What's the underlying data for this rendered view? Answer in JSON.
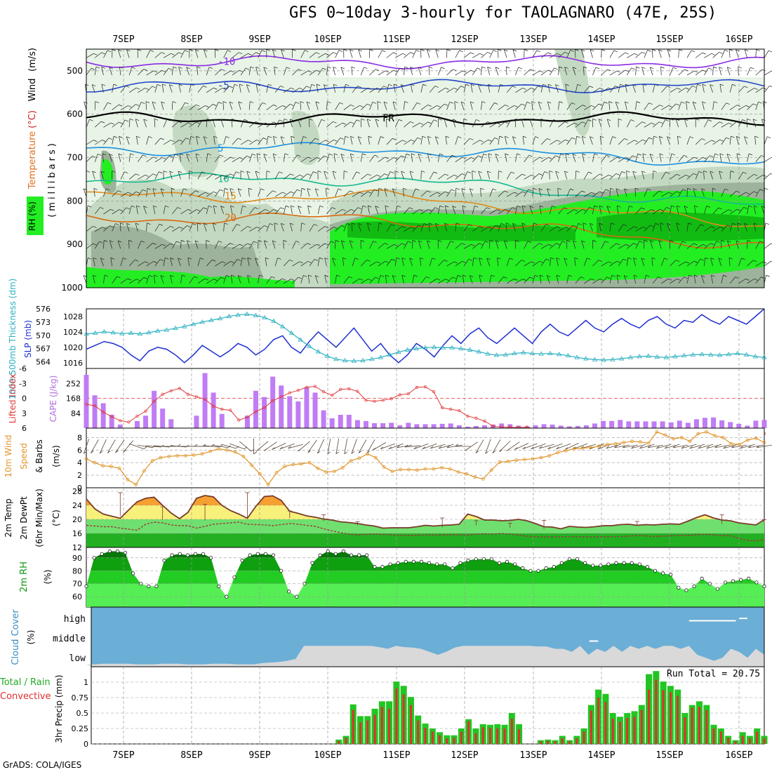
{
  "title": "GFS 0~10day 3-hourly for TAOLAGNARO (47E, 25S)",
  "credit": "GrADS: COLA/IGES",
  "colors": {
    "rh_light": "#e8f4e6",
    "rh_mid": "#c4d9c2",
    "rh_dark": "#9db39b",
    "rh_green": "#22ee22",
    "rh_darkgreen": "#11bb11",
    "cloud_blue": "#6baed6",
    "cloud_grey": "#d9d9d9",
    "slp": "#1e2fd2",
    "thickness": "#2ab0c0",
    "cape": "#c07cf5",
    "lifted": "#e23a3a",
    "wind10": "#e0952a",
    "precip_total": "#22c522",
    "precip_conv": "#e03030"
  },
  "chart_data": [
    {
      "type": "contour",
      "name": "upper_air",
      "ylabel_parts": [
        "Temperature",
        "(°C)",
        "Wind",
        "(m/s)"
      ],
      "ylabel_inner": "(millibars)",
      "rh_label": "RH (%)",
      "x_top_labels": [
        "7SEP",
        "8SEP",
        "9SEP",
        "10SEP",
        "11SEP",
        "12SEP",
        "13SEP",
        "14SEP",
        "15SEP",
        "16SEP"
      ],
      "yticks": [
        500,
        600,
        700,
        800,
        900,
        1000
      ],
      "ylim": [
        1000,
        450
      ],
      "isotherms": [
        {
          "label": "-10",
          "color": "#8a2be2",
          "level": 480
        },
        {
          "label": "-5",
          "color": "#2244cc",
          "level": 535
        },
        {
          "label": "FR",
          "color": "#000000",
          "level": 610
        },
        {
          "label": "5",
          "color": "#1e90e0",
          "level": 680
        },
        {
          "label": "10",
          "color": "#16b890",
          "level": 750
        },
        {
          "label": "15",
          "color": "#e08a1a",
          "level": 790
        },
        {
          "label": "20",
          "color": "#d86a10",
          "level": 840
        }
      ]
    },
    {
      "type": "line",
      "name": "slp_thickness",
      "ylabel_left": "1000-500mb Thickness (dm)",
      "ylabel_right": "SLP (mb)",
      "thickness_ticks": [
        564,
        567,
        570,
        573,
        576
      ],
      "slp_ticks": [
        1016,
        1020,
        1024,
        1028
      ],
      "slp": [
        1019.5,
        1020.5,
        1021.5,
        1021,
        1020,
        1018,
        1016.5,
        1019,
        1020,
        1019.5,
        1018,
        1016,
        1018,
        1020.5,
        1019,
        1017.5,
        1019,
        1021,
        1020,
        1018,
        1019.5,
        1022,
        1023,
        1020,
        1018.5,
        1021.5,
        1024,
        1022,
        1020,
        1022.5,
        1025,
        1022,
        1019,
        1021,
        1018,
        1016,
        1018,
        1021,
        1019.5,
        1017.5,
        1020.5,
        1023,
        1021,
        1023.5,
        1025,
        1022.5,
        1021,
        1023,
        1025,
        1023,
        1021,
        1024,
        1026,
        1024,
        1023,
        1025,
        1027,
        1025,
        1024,
        1026,
        1027.5,
        1026,
        1025,
        1027,
        1028,
        1026,
        1025,
        1027,
        1026.5,
        1028.5,
        1027,
        1026,
        1028,
        1027,
        1026,
        1028,
        1030
      ],
      "thickness": [
        570.3,
        570.5,
        570.8,
        570.6,
        570.4,
        570.5,
        570.3,
        570.6,
        571,
        571.2,
        571.6,
        572,
        572.5,
        573,
        573.4,
        573.8,
        574.3,
        574.6,
        574.8,
        574.5,
        574,
        573.2,
        572,
        570.5,
        569,
        567.5,
        566.3,
        565.3,
        564.6,
        564.3,
        564.2,
        564.3,
        564.6,
        565,
        565.6,
        566.2,
        566.7,
        567,
        567.2,
        567.3,
        567.2,
        567.2,
        567,
        566.7,
        566.3,
        565.8,
        565.5,
        565.6,
        565.9,
        566.1,
        565.9,
        565.8,
        565.9,
        565.7,
        565.4,
        565,
        564.7,
        564.5,
        564.4,
        564.5,
        564.7,
        565,
        565.2,
        565.3,
        565.1,
        565,
        565.2,
        565.4,
        565.6,
        565.7,
        565.6,
        565.5,
        565.7,
        565.9,
        565.6,
        565.2,
        565
      ]
    },
    {
      "type": "bar",
      "name": "cape_li",
      "ylabel_left": "Lifted Index",
      "ylabel_right": "CAPE (J/kg)",
      "li_ticks": [
        "-6",
        "-3",
        "0",
        "3",
        "6"
      ],
      "cape_ticks": [
        84,
        168,
        252
      ],
      "cape": [
        300,
        185,
        140,
        75,
        20,
        0,
        40,
        70,
        210,
        110,
        50,
        0,
        0,
        70,
        310,
        200,
        80,
        0,
        0,
        70,
        210,
        175,
        290,
        240,
        180,
        150,
        230,
        200,
        100,
        55,
        75,
        75,
        45,
        40,
        28,
        28,
        30,
        16,
        30,
        22,
        22,
        22,
        24,
        26,
        16,
        8,
        12,
        16,
        20,
        26,
        22,
        14,
        10,
        16,
        22,
        20,
        14,
        10,
        12,
        16,
        26,
        40,
        40,
        46,
        38,
        38,
        38,
        38,
        38,
        32,
        42,
        30,
        50,
        58,
        60,
        44,
        34,
        24,
        14,
        42,
        46
      ],
      "li": [
        1.2,
        1.5,
        2.8,
        3.7,
        4.5,
        4.8,
        3.6,
        2.6,
        0.6,
        -0.8,
        -1.5,
        -2,
        -0.8,
        -0.3,
        0.2,
        1.6,
        2.2,
        2.4,
        4.4,
        3.8,
        2.7,
        1.9,
        0.5,
        -0.3,
        -1.1,
        -1.6,
        -2.2,
        -2.4,
        -1.3,
        -0.6,
        -1.8,
        -1.9,
        -1.4,
        0.4,
        0.6,
        0.4,
        0.1,
        -0.7,
        -0.9,
        -2.2,
        -2.3,
        -1.3,
        1.9,
        2.2,
        2.5,
        3.6,
        4,
        4.6,
        5.6,
        5.8,
        5.8,
        5.9,
        5.8,
        6.2,
        6.2,
        6.3,
        6.5,
        6.2,
        6.6,
        6.5,
        6.6,
        6.6,
        6.8,
        6.9,
        7.1,
        6.9,
        7.2,
        7.1,
        7,
        6.9,
        7.2,
        7.1,
        7.2,
        7.3,
        7.4,
        7.2,
        7.3,
        7.3,
        7.4,
        7.2,
        7.1
      ]
    },
    {
      "type": "line",
      "name": "wind10m",
      "ylabel": "10m Wind Speed & Barbs (m/s)",
      "yticks": [
        0,
        2,
        4,
        6,
        8
      ],
      "speed": [
        4.6,
        4,
        3.5,
        3.4,
        3.1,
        1.3,
        0.5,
        2.7,
        4.3,
        4.8,
        5,
        5.1,
        5.1,
        5.2,
        5.4,
        5.8,
        6.2,
        6,
        5.7,
        5,
        3.6,
        2.2,
        0.5,
        2.4,
        3.4,
        3.7,
        3.8,
        4,
        3.1,
        2.5,
        2.6,
        3.2,
        4.3,
        4.7,
        5.4,
        4.8,
        3.3,
        2.6,
        2.9,
        2.9,
        2.8,
        3,
        3,
        3.2,
        3,
        2.5,
        2.2,
        1.7,
        1.4,
        2.8,
        4.1,
        4.2,
        4.4,
        4.5,
        4.6,
        4.8,
        5.1,
        5.6,
        5.9,
        6.2,
        6.3,
        6.4,
        6.6,
        6.9,
        7,
        7.2,
        7.4,
        7.3,
        7.1,
        8.9,
        8.4,
        7.8,
        8,
        7.4,
        8.6,
        8.9,
        8.3,
        8,
        7,
        6.9,
        7.6,
        7.9,
        7.2
      ],
      "barb_dir": [
        200,
        210,
        205,
        210,
        215,
        220,
        110,
        100,
        95,
        95,
        90,
        95,
        90,
        90,
        90,
        95,
        100,
        105,
        110,
        130,
        180,
        230,
        235,
        245,
        250,
        255,
        230,
        215,
        205,
        190,
        190,
        190,
        200,
        210,
        210,
        240,
        250,
        250,
        260,
        265,
        250,
        250,
        255,
        255,
        260,
        270,
        235,
        210,
        200,
        210,
        225,
        235,
        245,
        250,
        250,
        255,
        250,
        250,
        245,
        250,
        255,
        250,
        250,
        255,
        260,
        260,
        255,
        255,
        260,
        255,
        255,
        260,
        255,
        255,
        255,
        255,
        260,
        255,
        260,
        255,
        260,
        260
      ]
    },
    {
      "type": "area",
      "name": "temperature2m",
      "ylabel": "2m Temp 2m DewPt (6hr Min/Max) (°C)",
      "yticks": [
        12,
        16,
        20,
        24,
        28
      ],
      "temp": [
        25.8,
        23,
        21.5,
        20.9,
        20.3,
        22.7,
        25,
        26,
        26.3,
        24,
        21.8,
        20.2,
        22,
        26,
        26.8,
        26.4,
        24,
        22.5,
        21.5,
        20.3,
        23.7,
        26.5,
        26.7,
        25.4,
        22.3,
        21.7,
        21,
        20.6,
        20.1,
        19.8,
        19.3,
        19.1,
        18.8,
        18.4,
        18.1,
        17.5,
        17.6,
        17.6,
        17.6,
        17.9,
        18.3,
        18.1,
        18.3,
        18.4,
        18.6,
        21.5,
        20.8,
        19.8,
        19.8,
        19.6,
        19.7,
        20,
        19.6,
        18.8,
        17.9,
        17.8,
        17.3,
        18,
        17.8,
        17.7,
        17.9,
        18.2,
        18.2,
        18.5,
        18.6,
        18.3,
        18.5,
        18.4,
        18.6,
        18.7,
        18.6,
        19.5,
        20.5,
        21.3,
        20.4,
        19.8,
        19.6,
        19,
        18.7,
        18.4,
        19.9
      ],
      "dew": [
        18.3,
        18.1,
        17.9,
        17.9,
        17.5,
        17.2,
        16.9,
        18.6,
        19.2,
        19,
        18.4,
        18.2,
        18.2,
        17.5,
        18,
        18.6,
        18.8,
        19,
        19.2,
        18.6,
        18.5,
        18.4,
        18.2,
        18.5,
        18.8,
        18.6,
        18.3,
        18,
        17.3,
        16.7,
        16.2,
        15.8,
        15.5,
        15.7,
        15.8,
        15.7,
        15.6,
        15.4,
        15.4,
        15.4,
        15.6,
        15.5,
        15.6,
        15.6,
        15.6,
        15.5,
        15.8,
        15.9,
        15.8,
        16,
        15.8,
        15.5,
        15.2,
        15,
        15,
        15,
        15,
        15.1,
        15,
        15,
        15,
        15,
        15,
        15.1,
        15.2,
        15.4,
        15.3,
        15.1,
        15.2,
        15.3,
        15.4,
        15.4,
        15.6,
        15.7,
        15.6,
        15.4,
        15.3,
        14.6,
        14,
        13.9,
        14.3
      ],
      "max6h": [
        null,
        null,
        null,
        null,
        27.6,
        null,
        null,
        null,
        null,
        23.6,
        null,
        null,
        null,
        null,
        24.3,
        null,
        null,
        null,
        null,
        27.6,
        null,
        null,
        null,
        null,
        22.4,
        null,
        null,
        null,
        21.3,
        null,
        null,
        null,
        19.3,
        null,
        null,
        null,
        null,
        null,
        null,
        null,
        null,
        null,
        20.4,
        null,
        null,
        null,
        19.6,
        null,
        null,
        null,
        18.9,
        null,
        null,
        null,
        19.7,
        null,
        null,
        null,
        null,
        null,
        null,
        null,
        null,
        null,
        null,
        19.4,
        null,
        null,
        null,
        null,
        null,
        null,
        null,
        null,
        null,
        21.3,
        null,
        null,
        null,
        null,
        19.9
      ],
      "min6h": [
        null,
        null,
        null,
        null,
        20.9,
        null,
        null,
        null,
        null,
        19.9,
        null,
        null,
        null,
        null,
        19.7,
        null,
        null,
        null,
        null,
        20.2,
        null,
        null,
        null,
        null,
        20.4,
        null,
        null,
        null,
        19.5,
        null,
        null,
        null,
        18.3,
        null,
        null,
        null,
        null,
        null,
        null,
        null,
        null,
        null,
        17.7,
        null,
        null,
        null,
        18.3,
        null,
        null,
        null,
        17.6,
        null,
        null,
        null,
        17.3,
        null,
        null,
        null,
        null,
        null,
        null,
        null,
        null,
        null,
        null,
        18.2,
        null,
        null,
        null,
        null,
        null,
        null,
        null,
        null,
        null,
        18.7,
        null,
        null,
        null,
        null,
        18.4
      ]
    },
    {
      "type": "area",
      "name": "rh2m",
      "ylabel": "2m RH (%)",
      "yticks": [
        60,
        70,
        80,
        90
      ],
      "rh": [
        68,
        90,
        93,
        95,
        95,
        94,
        78,
        70,
        68,
        68,
        88,
        92,
        93,
        92,
        93,
        93,
        90,
        68,
        60,
        75,
        88,
        92,
        93,
        93,
        92,
        80,
        64,
        60,
        70,
        86,
        92,
        95,
        93,
        95,
        92,
        92,
        92,
        83,
        83,
        85,
        86,
        87,
        87,
        87,
        86,
        85,
        85,
        82,
        86,
        88,
        89,
        89,
        89,
        86,
        87,
        85,
        82,
        80,
        80,
        82,
        83,
        86,
        89,
        89,
        86,
        84,
        84,
        85,
        86,
        86,
        86,
        85,
        83,
        80,
        78,
        77,
        67,
        65,
        68,
        74,
        70,
        66,
        71,
        72,
        73,
        74,
        71,
        68
      ],
      "ylim": [
        52,
        98
      ]
    },
    {
      "type": "area",
      "name": "cloud",
      "ylabel": "Cloud Cover (%)",
      "levels": [
        "high",
        "middle",
        "low"
      ],
      "low": [
        4,
        4,
        5,
        5,
        5,
        5,
        4,
        4,
        4,
        5,
        5,
        5,
        4,
        4,
        4,
        5,
        5,
        5,
        4,
        4,
        4,
        6,
        7,
        8,
        10,
        13,
        35,
        35,
        35,
        35,
        35,
        35,
        35,
        35,
        35,
        33,
        30,
        35,
        33,
        32,
        30,
        25,
        20,
        25,
        32,
        35,
        35,
        35,
        35,
        35,
        35,
        35,
        35,
        35,
        34,
        34,
        30,
        30,
        25,
        35,
        20,
        30,
        25,
        35,
        25,
        35,
        30,
        35,
        30,
        35,
        35,
        30,
        35,
        20,
        15,
        10,
        15,
        30,
        25,
        15,
        30,
        20
      ],
      "high_lines": [
        {
          "start": 0.889,
          "end": 0.958,
          "value": 0.77
        },
        {
          "start": 0.963,
          "end": 0.975,
          "value": 0.81
        }
      ],
      "mid_line": [
        {
          "start": 0.742,
          "end": 0.755,
          "value": 0.43
        }
      ]
    },
    {
      "type": "bar",
      "name": "precip",
      "ylabel": "3hr Precip (mm)",
      "ylabel_extra": [
        "Total / Rain",
        "Convective"
      ],
      "yticks": [
        0,
        0.25,
        0.5,
        0.75,
        1
      ],
      "ytick_labels": [
        "0",
        "0.25",
        "0.5",
        "0.75",
        "1"
      ],
      "annotation": "Run Total = 20.75",
      "total": [
        0,
        0,
        0,
        0,
        0,
        0,
        0,
        0,
        0,
        0,
        0,
        0,
        0,
        0,
        0,
        0,
        0,
        0,
        0,
        0,
        0,
        0,
        0,
        0,
        0,
        0,
        0,
        0,
        0,
        0,
        0,
        0,
        0,
        0,
        0,
        0.07,
        0.13,
        0.64,
        0.45,
        0.45,
        0.57,
        0.69,
        0.69,
        1.01,
        0.94,
        0.76,
        0.46,
        0.33,
        0.25,
        0.19,
        0.14,
        0.14,
        0.25,
        0.4,
        0.25,
        0.32,
        0.31,
        0.32,
        0.31,
        0.5,
        0.32,
        0,
        0,
        0.06,
        0.07,
        0.06,
        0.13,
        0.06,
        0.13,
        0.25,
        0.63,
        0.88,
        0.81,
        0.5,
        0.44,
        0.5,
        0.53,
        0.63,
        1.13,
        1.18,
        1.01,
        0.94,
        0.88,
        0.5,
        0.63,
        0.69,
        0.63,
        0.31,
        0.25,
        0.13,
        0.06,
        0.19,
        0.13,
        0.25,
        0.13
      ],
      "conv": [
        0,
        0,
        0,
        0,
        0,
        0,
        0,
        0,
        0,
        0,
        0,
        0,
        0,
        0,
        0,
        0,
        0,
        0,
        0,
        0,
        0,
        0,
        0,
        0,
        0,
        0,
        0,
        0,
        0,
        0,
        0,
        0,
        0,
        0,
        0,
        0.05,
        0.1,
        0.55,
        0.35,
        0.38,
        0.47,
        0.6,
        0.57,
        0.9,
        0.8,
        0.63,
        0.38,
        0.26,
        0.2,
        0.14,
        0.09,
        0.1,
        0.2,
        0.37,
        0.17,
        0.27,
        0.26,
        0.25,
        0.25,
        0.41,
        0.24,
        0,
        0,
        0.04,
        0.05,
        0.04,
        0.09,
        0.04,
        0.09,
        0.2,
        0.54,
        0.75,
        0.68,
        0.41,
        0.36,
        0.42,
        0.44,
        0.55,
        0.88,
        1.04,
        0.87,
        0.84,
        0.78,
        0.43,
        0.59,
        0.6,
        0.55,
        0.25,
        0.2,
        0.1,
        0.04,
        0.13,
        0.09,
        0.2,
        0.09
      ],
      "x_bottom_labels": [
        "7SEP",
        "8SEP",
        "9SEP",
        "10SEP",
        "11SEP",
        "12SEP",
        "13SEP",
        "14SEP",
        "15SEP",
        "16SEP"
      ]
    }
  ]
}
